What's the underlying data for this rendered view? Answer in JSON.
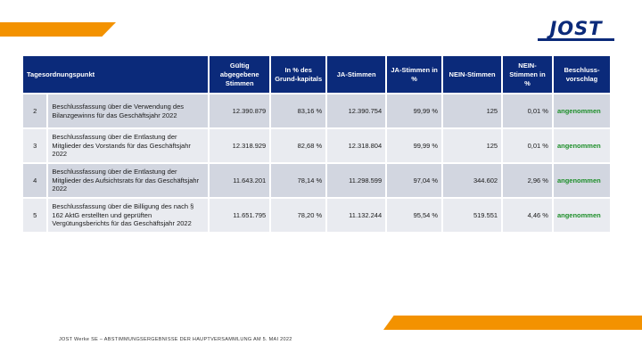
{
  "brand": {
    "logo_text": "JOST",
    "accent": "#f39200",
    "navy": "#0b2a7a",
    "green": "#1e8f2a"
  },
  "table": {
    "headers": [
      "Tagesordnungspunkt",
      "Gültig abgegebene Stimmen",
      "In % des Grund-kapitals",
      "JA-Stimmen",
      "JA-Stimmen in %",
      "NEIN-Stimmen",
      "NEIN-Stimmen in %",
      "Beschluss-vorschlag"
    ],
    "rows": [
      {
        "nr": "2",
        "topic": "Beschlussfassung über die Verwendung des Bilanzgewinns für das Geschäftsjahr 2022",
        "valid": "12.390.879",
        "pct_capital": "83,16 %",
        "yes": "12.390.754",
        "yes_pct": "99,99 %",
        "no": "125",
        "no_pct": "0,01 %",
        "result": "angenommen"
      },
      {
        "nr": "3",
        "topic": "Beschlussfassung über die Entlastung der Mitglieder des Vorstands für das Geschäftsjahr 2022",
        "valid": "12.318.929",
        "pct_capital": "82,68 %",
        "yes": "12.318.804",
        "yes_pct": "99,99 %",
        "no": "125",
        "no_pct": "0,01 %",
        "result": "angenommen"
      },
      {
        "nr": "4",
        "topic": "Beschlussfassung über die Entlastung der Mitglieder des Aufsichtsrats für das Geschäftsjahr 2022",
        "valid": "11.643.201",
        "pct_capital": "78,14 %",
        "yes": "11.298.599",
        "yes_pct": "97,04 %",
        "no": "344.602",
        "no_pct": "2,96 %",
        "result": "angenommen"
      },
      {
        "nr": "5",
        "topic": "Beschlussfassung über die Billigung des nach § 162 AktG erstellten und geprüften Vergütungsberichts für das Geschäftsjahr 2022",
        "valid": "11.651.795",
        "pct_capital": "78,20 %",
        "yes": "11.132.244",
        "yes_pct": "95,54 %",
        "no": "519.551",
        "no_pct": "4,46 %",
        "result": "angenommen"
      }
    ]
  },
  "footer": {
    "text": "JOST Werke SE   –   ABSTIMMUNGSERGEBNISSE DER HAUPTVERSAMMLUNG AM 5. MAI 2022"
  }
}
